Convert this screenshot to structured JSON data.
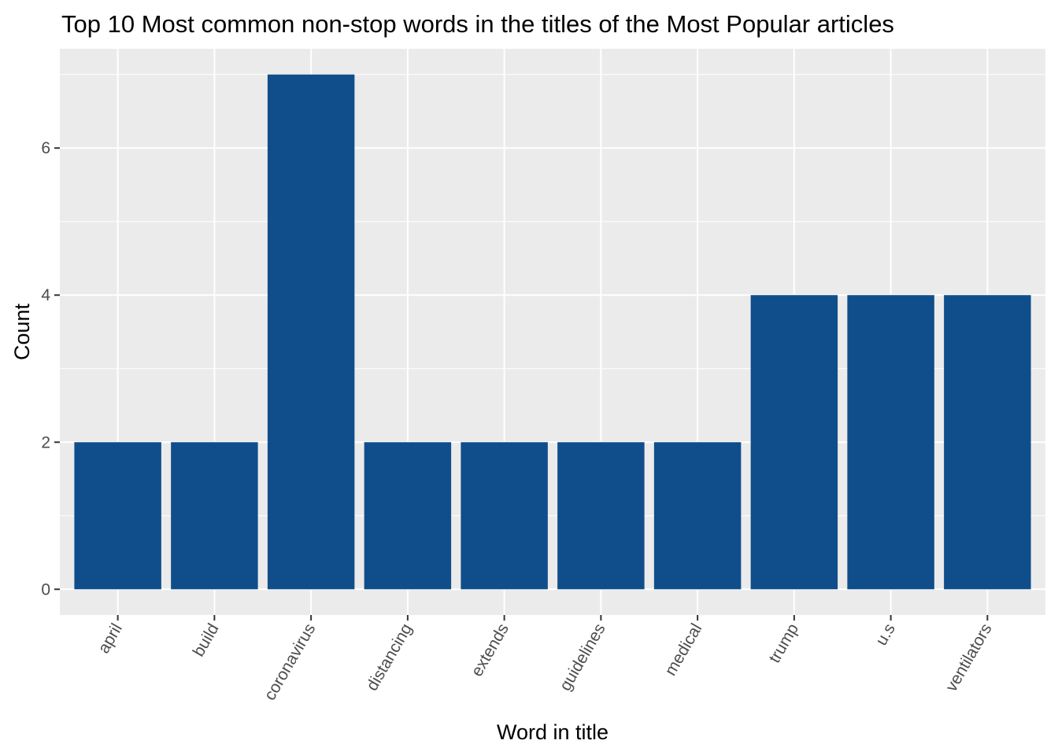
{
  "chart_data": {
    "type": "bar",
    "title": "Top 10 Most common non-stop words in the titles of the Most Popular articles",
    "xlabel": "Word in title",
    "ylabel": "Count",
    "categories": [
      "april",
      "build",
      "coronavirus",
      "distancing",
      "extends",
      "guidelines",
      "medical",
      "trump",
      "u.s",
      "ventilators"
    ],
    "values": [
      2,
      2,
      7,
      2,
      2,
      2,
      2,
      4,
      4,
      4
    ],
    "yticks": [
      0,
      2,
      4,
      6
    ],
    "ylim": [
      -0.35,
      7.35
    ],
    "grid": true,
    "legend": "none",
    "bar_color": "#104E8B",
    "panel_color": "#EBEBEB"
  }
}
